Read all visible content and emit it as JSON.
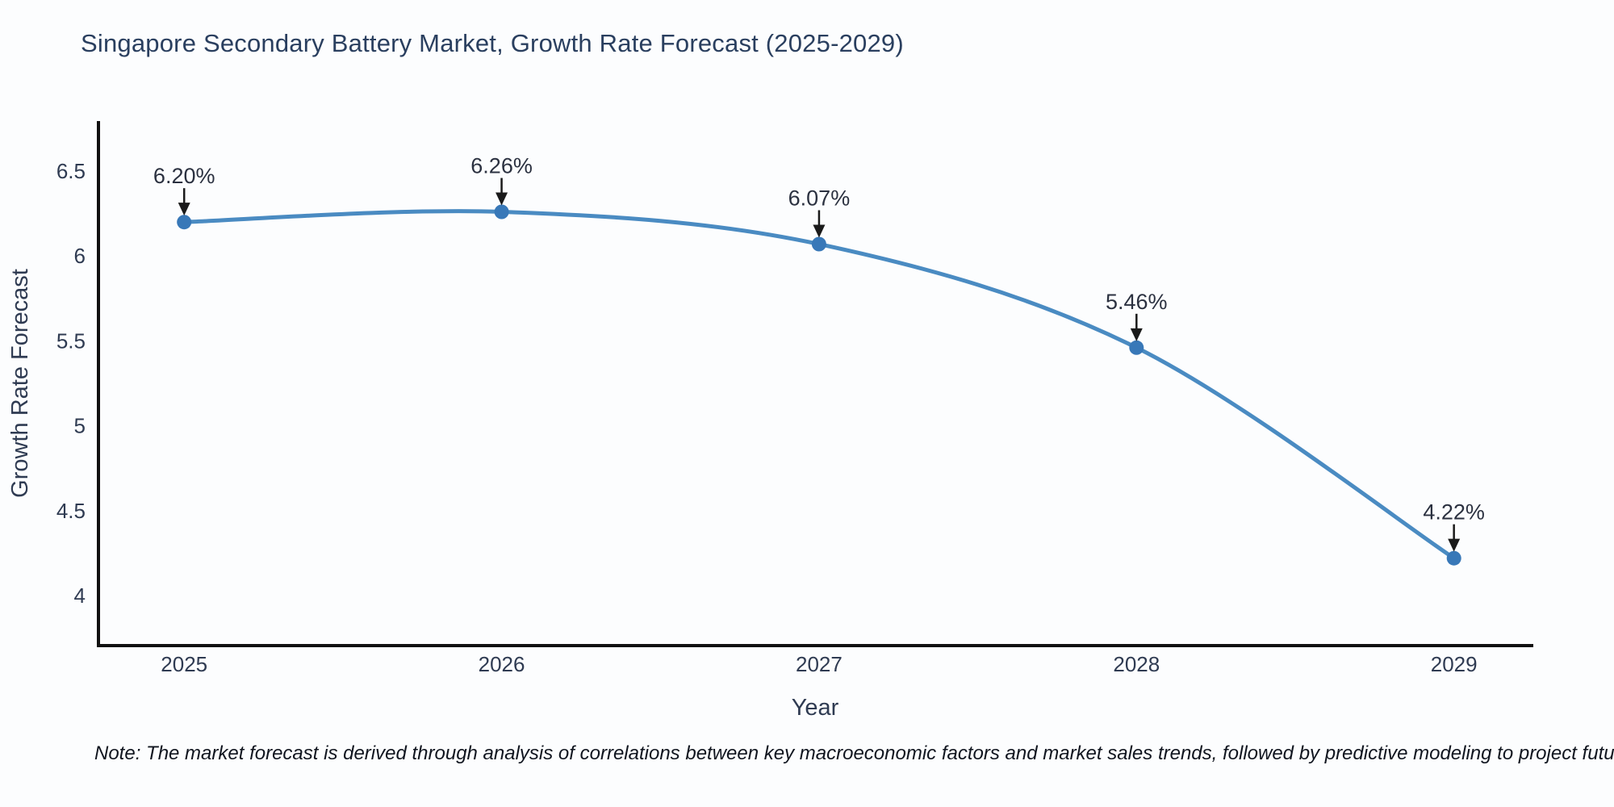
{
  "title": "Singapore Secondary Battery Market, Growth Rate Forecast (2025-2029)",
  "note": "Note: The market forecast is derived through analysis of correlations between key macroeconomic factors and market sales trends, followed by predictive modeling to project future sales",
  "chart_data": {
    "type": "line",
    "title": "Singapore Secondary Battery Market, Growth Rate Forecast (2025-2029)",
    "xlabel": "Year",
    "ylabel": "Growth Rate Forecast",
    "categories": [
      2025,
      2026,
      2027,
      2028,
      2029
    ],
    "values": [
      6.2,
      6.26,
      6.07,
      5.46,
      4.22
    ],
    "point_labels": [
      "6.20%",
      "6.26%",
      "6.07%",
      "5.46%",
      "4.22%"
    ],
    "x_tick_labels": [
      "2025",
      "2026",
      "2027",
      "2028",
      "2029"
    ],
    "y_ticks": [
      4,
      4.5,
      5,
      5.5,
      6,
      6.5
    ],
    "y_tick_labels": [
      "4",
      "4.5",
      "5",
      "5.5",
      "6",
      "6.5"
    ],
    "xlim": [
      2024.73,
      2029.25
    ],
    "ylim": [
      3.705,
      6.795
    ],
    "line_shape": "spline",
    "grid": false,
    "legend": "none",
    "annotations_have_arrows": true,
    "colors": {
      "line": "#4a8bc2",
      "marker": "#3878b8",
      "axis": "#111111",
      "tick_text": "#2f3b52",
      "title_text": "#2a3f5f",
      "annotation_text": "#2b3140",
      "arrow": "#1a1a1a",
      "background": "#fcfdfe"
    }
  }
}
